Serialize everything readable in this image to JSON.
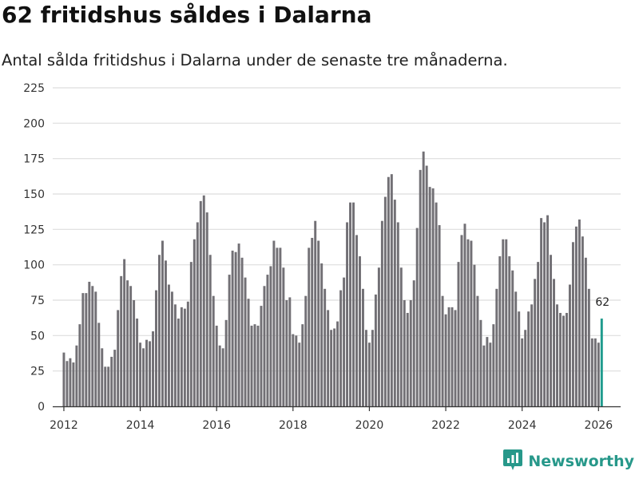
{
  "header": {
    "title": "62 fritidshus såldes i Dalarna",
    "subtitle": "Antal sålda fritidshus i Dalarna under de senaste tre månaderna."
  },
  "brand": {
    "name": "Newsworthy",
    "icon": "newsworthy-logo-icon",
    "color": "#27988a"
  },
  "colors": {
    "bar": "#727075",
    "highlight": "#1f9b8d",
    "grid": "#dedede",
    "axis": "#333333"
  },
  "chart_data": {
    "type": "bar",
    "title": "62 fritidshus såldes i Dalarna",
    "xlabel": "",
    "ylabel": "",
    "ylim": [
      0,
      225
    ],
    "yticks": [
      0,
      25,
      50,
      75,
      100,
      125,
      150,
      175,
      200,
      225
    ],
    "xlim": [
      2011.75,
      2026.6
    ],
    "xticks": [
      2012,
      2014,
      2016,
      2018,
      2020,
      2022,
      2024,
      2026
    ],
    "grid": true,
    "series": [
      {
        "name": "Antal sålda fritidshus",
        "start": [
          2012,
          1
        ],
        "frequency": "monthly",
        "values": [
          38,
          32,
          34,
          31,
          43,
          58,
          80,
          80,
          88,
          85,
          81,
          59,
          41,
          28,
          28,
          35,
          40,
          68,
          92,
          104,
          89,
          85,
          75,
          62,
          45,
          41,
          47,
          46,
          53,
          82,
          107,
          117,
          103,
          86,
          81,
          72,
          62,
          70,
          69,
          74,
          102,
          118,
          130,
          145,
          149,
          137,
          107,
          78,
          57,
          43,
          41,
          61,
          93,
          110,
          109,
          115,
          105,
          91,
          76,
          57,
          58,
          57,
          71,
          85,
          93,
          99,
          117,
          112,
          112,
          98,
          75,
          77,
          51,
          50,
          45,
          58,
          78,
          112,
          119,
          131,
          117,
          101,
          83,
          68,
          54,
          55,
          60,
          82,
          91,
          130,
          144,
          144,
          121,
          106,
          83,
          54,
          45,
          54,
          79,
          98,
          131,
          148,
          162,
          164,
          146,
          130,
          98,
          75,
          66,
          75,
          89,
          126,
          167,
          180,
          170,
          155,
          154,
          144,
          128,
          78,
          65,
          70,
          70,
          68,
          102,
          121,
          129,
          118,
          117,
          100,
          78,
          61,
          43,
          49,
          45,
          58,
          83,
          106,
          118,
          118,
          106,
          96,
          81,
          67,
          48,
          54,
          67,
          72,
          90,
          102,
          133,
          130,
          135,
          107,
          90,
          72,
          66,
          64,
          66,
          86,
          116,
          127,
          132,
          120,
          105,
          83,
          48,
          48,
          45,
          62
        ],
        "highlight_last": true
      }
    ],
    "annotations": [
      {
        "text": "62"
      }
    ]
  }
}
